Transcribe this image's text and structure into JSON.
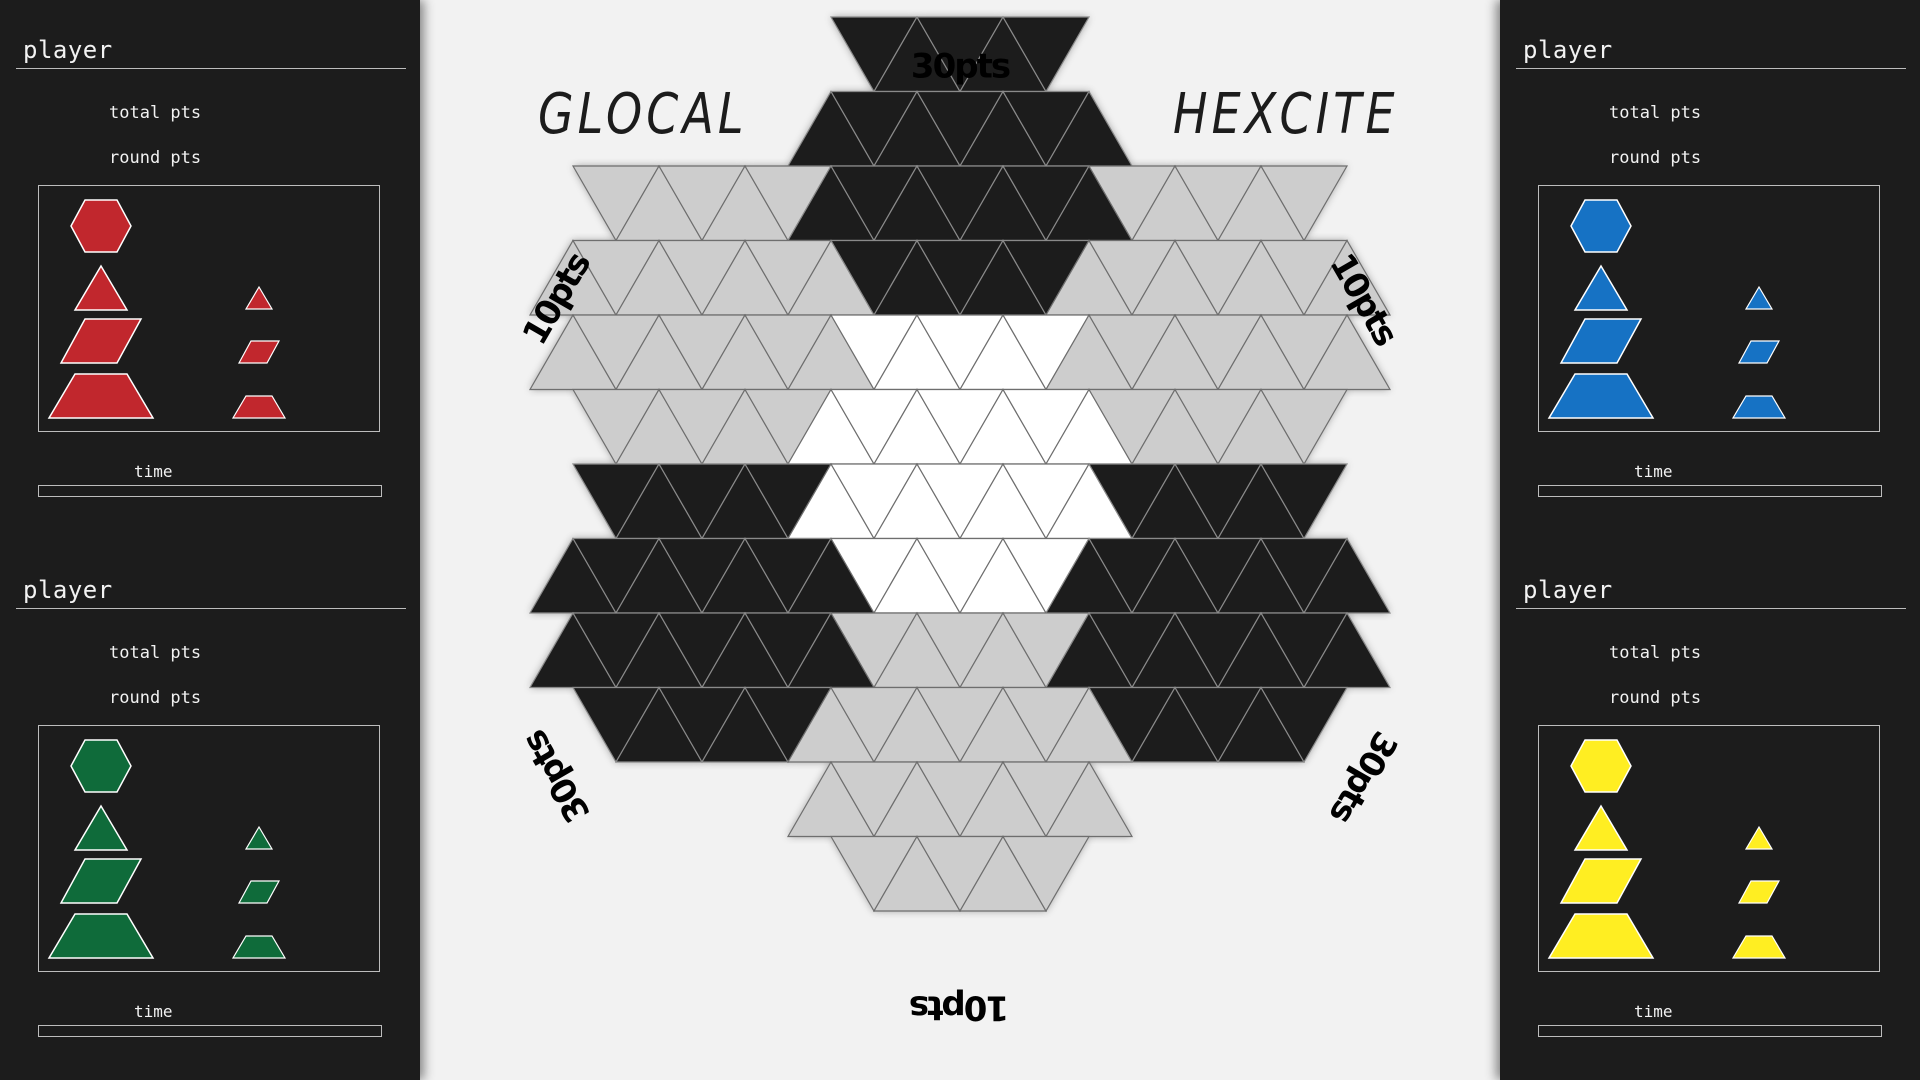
{
  "title": {
    "left": "GLOCAL",
    "right": "HEXCITE"
  },
  "players": [
    {
      "name": "player",
      "total_label": "total pts",
      "round_label": "round pts",
      "time_label": "time",
      "color": "#c1272d",
      "time_progress": 0
    },
    {
      "name": "player",
      "total_label": "total pts",
      "round_label": "round pts",
      "time_label": "time",
      "color": "#0f6b3a",
      "time_progress": 0
    },
    {
      "name": "player",
      "total_label": "total pts",
      "round_label": "round pts",
      "time_label": "time",
      "color": "#1672c4",
      "time_progress": 0
    },
    {
      "name": "player",
      "total_label": "total pts",
      "round_label": "round pts",
      "time_label": "time",
      "color": "#ffee22",
      "time_progress": 0
    }
  ],
  "pieces": {
    "large": [
      "hexagon",
      "triangle",
      "parallelogram",
      "trapezoid"
    ],
    "small": [
      "triangle",
      "parallelogram",
      "trapezoid"
    ]
  },
  "board": {
    "sectors": [
      {
        "id": "top",
        "points_label": "30pts",
        "fill": "#1c1c1c"
      },
      {
        "id": "top-right",
        "points_label": "10pts",
        "fill": "#cdcdcd"
      },
      {
        "id": "bottom-right",
        "points_label": "30pts",
        "fill": "#1c1c1c"
      },
      {
        "id": "bottom",
        "points_label": "10pts",
        "fill": "#cdcdcd"
      },
      {
        "id": "bottom-left",
        "points_label": "30pts",
        "fill": "#1c1c1c"
      },
      {
        "id": "top-left",
        "points_label": "10pts",
        "fill": "#cdcdcd"
      }
    ],
    "center": {
      "fill": "#ffffff"
    }
  },
  "colors": {
    "panel": "#1c1c1c",
    "background": "#f2f2f2",
    "grid_line": "#6e6e6e"
  }
}
